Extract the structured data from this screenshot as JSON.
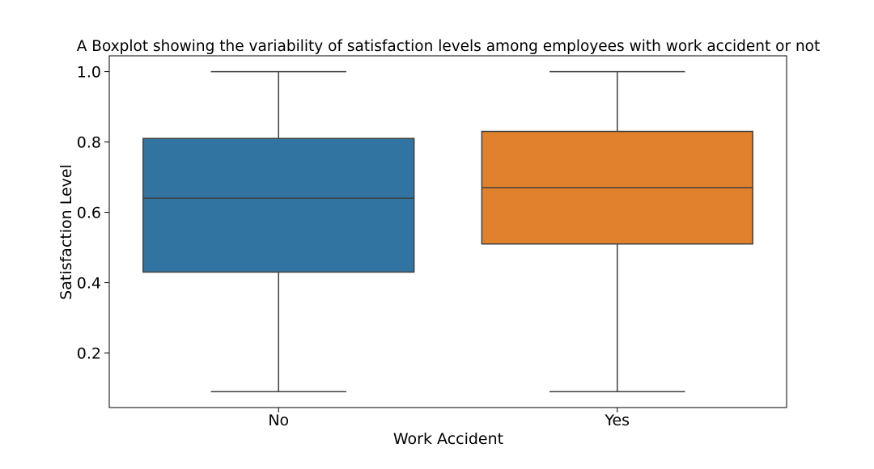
{
  "chart_data": {
    "type": "box",
    "title": "A Boxplot showing the variability of satisfaction levels among employees with work accident or not",
    "xlabel": "Work Accident",
    "ylabel": "Satisfaction Level",
    "categories": [
      "No",
      "Yes"
    ],
    "colors": [
      "#3274a1",
      "#e1812c"
    ],
    "ylim": [
      0.045,
      1.045
    ],
    "yticks": [
      0.2,
      0.4,
      0.6,
      0.8,
      1.0
    ],
    "ytick_labels": [
      "0.2",
      "0.4",
      "0.6",
      "0.8",
      "1.0"
    ],
    "grid": false,
    "boxes": [
      {
        "category": "No",
        "whisker_low": 0.09,
        "q1": 0.43,
        "median": 0.64,
        "q3": 0.81,
        "whisker_high": 1.0
      },
      {
        "category": "Yes",
        "whisker_low": 0.09,
        "q1": 0.51,
        "median": 0.67,
        "q3": 0.83,
        "whisker_high": 1.0
      }
    ]
  }
}
